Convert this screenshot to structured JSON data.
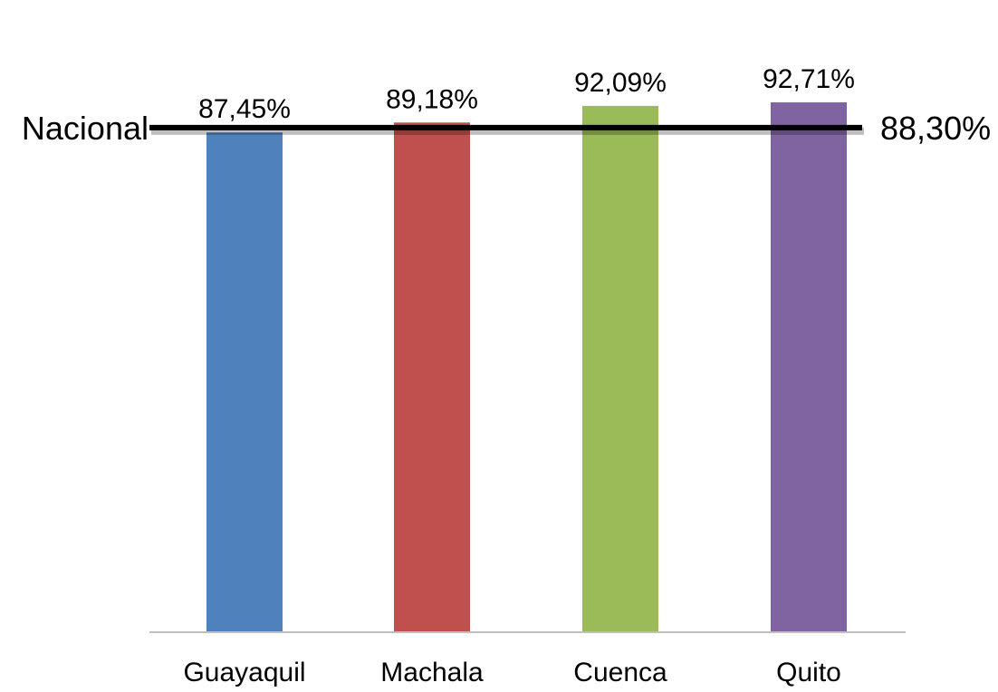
{
  "chart_data": {
    "type": "bar",
    "categories": [
      "Guayaquil",
      "Machala",
      "Cuenca",
      "Quito"
    ],
    "values": [
      87.45,
      89.18,
      92.09,
      92.71
    ],
    "value_labels": [
      "87,45%",
      "89,18%",
      "92,09%",
      "92,71%"
    ],
    "colors": [
      "#4f81bd",
      "#c0504d",
      "#9bbb59",
      "#8064a2"
    ],
    "reference_line": {
      "label": "Nacional",
      "value": 88.3,
      "value_label": "88,30%",
      "color": "#000000"
    },
    "title": "",
    "xlabel": "",
    "ylabel": "",
    "ylim": [
      0,
      100
    ],
    "grid": false,
    "legend": "none"
  }
}
